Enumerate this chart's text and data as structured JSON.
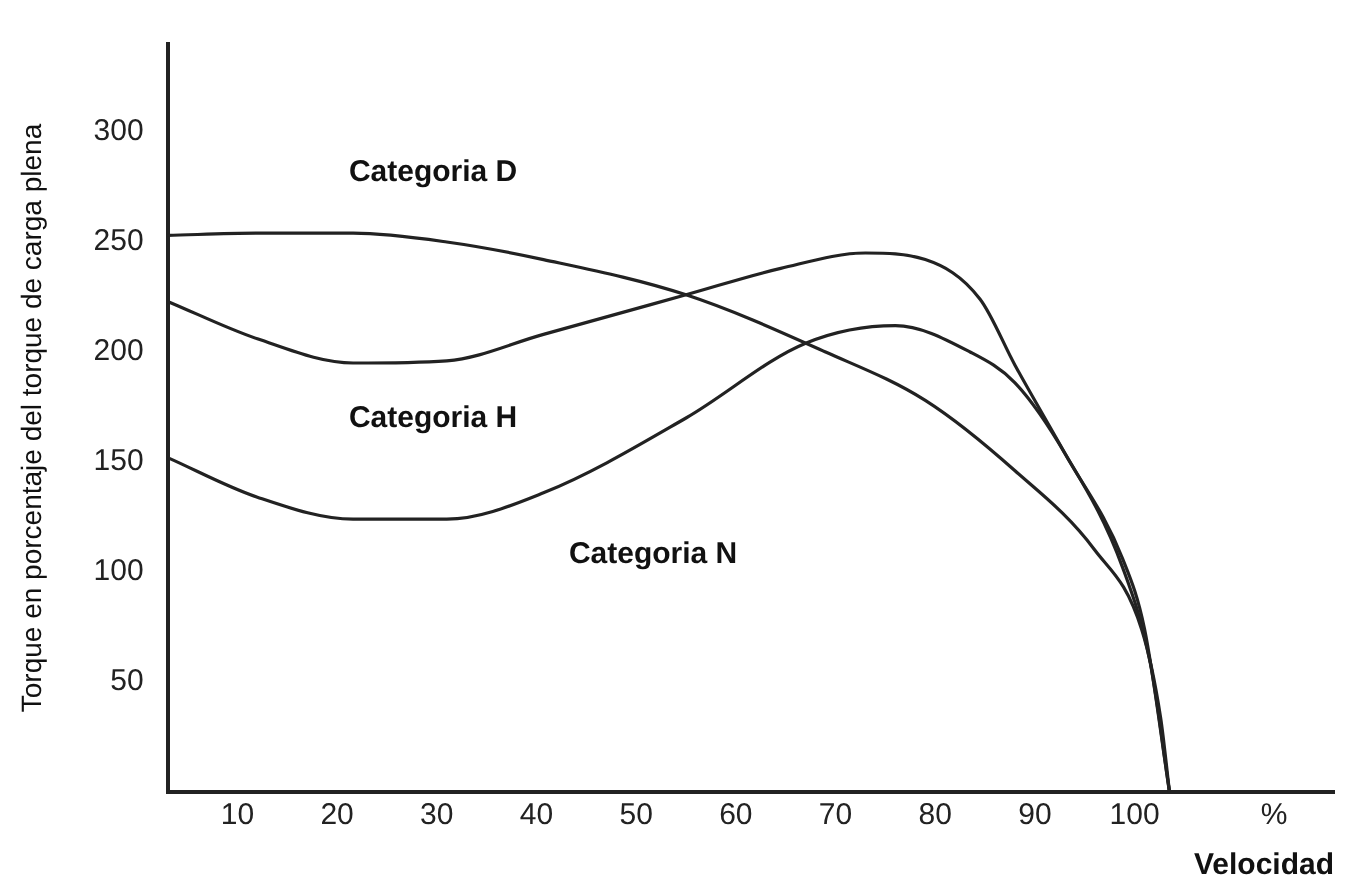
{
  "chart_data": {
    "type": "line",
    "xlabel": "Velocidad",
    "ylabel": "Torque en porcentaje del torque de carga plena",
    "xlim": [
      3,
      120
    ],
    "ylim": [
      0,
      340
    ],
    "xticks": [
      10,
      20,
      30,
      40,
      50,
      60,
      70,
      80,
      90,
      100,
      {
        "value": 114,
        "label": "%"
      }
    ],
    "yticks": [
      50,
      100,
      150,
      200,
      250,
      300
    ],
    "grid": false,
    "legend": false,
    "marker": "none",
    "line_style": "solid",
    "series": [
      {
        "name": "Categoria D",
        "color": "#222222",
        "x": [
          3,
          12,
          21.6,
          31,
          40.7,
          55,
          69,
          79,
          88,
          96,
          100.7,
          102.6,
          103.5
        ],
        "values": [
          253,
          254,
          254,
          250,
          242,
          226,
          200,
          178,
          146,
          110,
          74,
          34,
          0
        ]
      },
      {
        "name": "Categoria H",
        "color": "#222222",
        "x": [
          3,
          12,
          21.6,
          31,
          40.7,
          55,
          64.5,
          73,
          79,
          84.5,
          88,
          93,
          98.8,
          101,
          103.5
        ],
        "values": [
          223,
          206,
          195,
          196,
          208,
          226,
          238,
          245,
          242,
          224,
          194,
          154,
          106,
          74,
          0
        ]
      },
      {
        "name": "Categoria N",
        "color": "#222222",
        "x": [
          3,
          12,
          21.6,
          31,
          40.7,
          55,
          67,
          76,
          83.5,
          88,
          93,
          98.8,
          101.6,
          103.5
        ],
        "values": [
          152,
          134,
          124,
          124,
          136,
          170,
          204,
          212,
          200,
          186,
          154,
          102,
          58,
          0
        ]
      }
    ]
  }
}
